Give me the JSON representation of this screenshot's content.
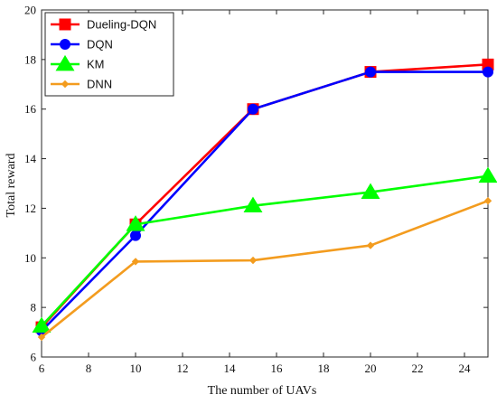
{
  "chart_data": {
    "type": "line",
    "xlabel": "The number of UAVs",
    "ylabel": "Total reward",
    "xlim": [
      6,
      25
    ],
    "ylim": [
      6,
      20
    ],
    "xticks": [
      6,
      8,
      10,
      12,
      14,
      16,
      18,
      20,
      22,
      24
    ],
    "yticks": [
      6,
      8,
      10,
      12,
      14,
      16,
      18,
      20
    ],
    "grid": false,
    "legend_position": "top-left",
    "series": [
      {
        "name": "Dueling-DQN",
        "color": "#ff0000",
        "marker": "square",
        "x": [
          6,
          10,
          15,
          20,
          25
        ],
        "y": [
          7.2,
          11.35,
          16.0,
          17.5,
          17.8
        ]
      },
      {
        "name": "DQN",
        "color": "#0000ff",
        "marker": "circle",
        "x": [
          6,
          10,
          15,
          20,
          25
        ],
        "y": [
          7.05,
          10.9,
          16.0,
          17.5,
          17.5
        ]
      },
      {
        "name": "KM",
        "color": "#00ff00",
        "marker": "triangle",
        "x": [
          6,
          10,
          15,
          20,
          25
        ],
        "y": [
          7.25,
          11.35,
          12.1,
          12.65,
          13.3
        ]
      },
      {
        "name": "DNN",
        "color": "#f39c1f",
        "marker": "diamond",
        "x": [
          6,
          10,
          15,
          20,
          25
        ],
        "y": [
          6.8,
          9.85,
          9.9,
          10.5,
          12.3
        ]
      }
    ]
  }
}
